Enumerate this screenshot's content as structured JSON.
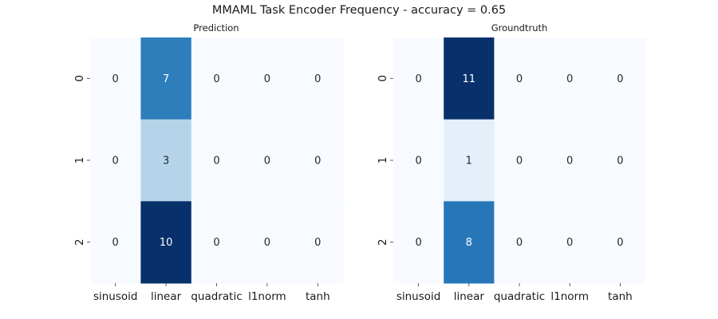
{
  "figure": {
    "title": "MMAML Task Encoder Frequency - accuracy = 0.65"
  },
  "chart_data": [
    {
      "type": "heatmap",
      "title": "Prediction",
      "x_categories": [
        "sinusoid",
        "linear",
        "quadratic",
        "l1norm",
        "tanh"
      ],
      "y_categories": [
        "0",
        "1",
        "2"
      ],
      "values": [
        [
          0,
          7,
          0,
          0,
          0
        ],
        [
          0,
          3,
          0,
          0,
          0
        ],
        [
          0,
          10,
          0,
          0,
          0
        ]
      ],
      "colormap": "Blues",
      "vmin": 0,
      "vmax": 10,
      "colorbar": false,
      "annotations": true
    },
    {
      "type": "heatmap",
      "title": "Groundtruth",
      "x_categories": [
        "sinusoid",
        "linear",
        "quadratic",
        "l1norm",
        "tanh"
      ],
      "y_categories": [
        "0",
        "1",
        "2"
      ],
      "values": [
        [
          0,
          11,
          0,
          0,
          0
        ],
        [
          0,
          1,
          0,
          0,
          0
        ],
        [
          0,
          8,
          0,
          0,
          0
        ]
      ],
      "colormap": "Blues",
      "vmin": 0,
      "vmax": 11,
      "colorbar": false,
      "annotations": true
    }
  ],
  "colors": {
    "low": "#f7fbff",
    "high": "#08306b",
    "text_dark": "#262626",
    "text_light": "#ffffff"
  }
}
